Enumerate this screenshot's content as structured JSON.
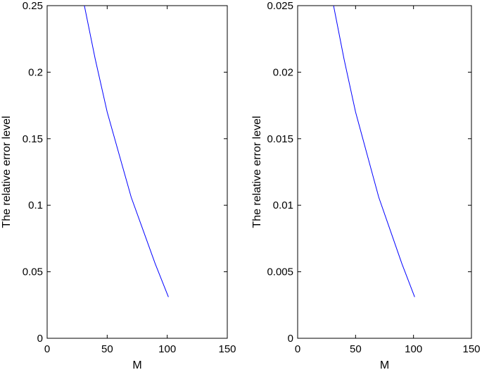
{
  "chart_data": [
    {
      "type": "line",
      "title": "",
      "xlabel": "M",
      "ylabel": "The relative error level",
      "xlim": [
        0,
        150
      ],
      "ylim": [
        0,
        0.25
      ],
      "xticks": [
        0,
        50,
        100,
        150
      ],
      "yticks": [
        0,
        0.05,
        0.1,
        0.15,
        0.2,
        0.25
      ],
      "xtick_labels": [
        "0",
        "50",
        "100",
        "150"
      ],
      "ytick_labels": [
        "0",
        "0.05",
        "0.1",
        "0.15",
        "0.2",
        "0.25"
      ],
      "grid": false,
      "series": [
        {
          "color": "#0000ff",
          "x": [
            31,
            40,
            50,
            60,
            70,
            80,
            90,
            101
          ],
          "y": [
            0.25,
            0.21,
            0.17,
            0.138,
            0.106,
            0.081,
            0.056,
            0.031
          ]
        }
      ]
    },
    {
      "type": "line",
      "title": "",
      "xlabel": "M",
      "ylabel": "The relative error level",
      "xlim": [
        0,
        150
      ],
      "ylim": [
        0,
        0.025
      ],
      "xticks": [
        0,
        50,
        100,
        150
      ],
      "yticks": [
        0,
        0.005,
        0.01,
        0.015,
        0.02,
        0.025
      ],
      "xtick_labels": [
        "0",
        "50",
        "100",
        "150"
      ],
      "ytick_labels": [
        "0",
        "0.005",
        "0.01",
        "0.015",
        "0.02",
        "0.025"
      ],
      "grid": false,
      "series": [
        {
          "color": "#0000ff",
          "x": [
            31,
            40,
            50,
            60,
            70,
            80,
            90,
            101
          ],
          "y": [
            0.025,
            0.021,
            0.017,
            0.0138,
            0.0106,
            0.0081,
            0.0056,
            0.0031
          ]
        }
      ]
    }
  ]
}
